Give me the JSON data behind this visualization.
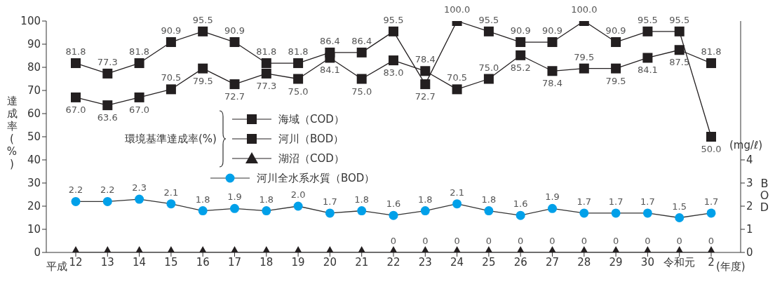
{
  "chart_data": {
    "type": "line",
    "ylabel": "達成率(%)",
    "y2label": "BOD",
    "legend_title": "環境基準達成率(%)",
    "annotations": [
      "平成",
      "(年度)",
      "(mg/ℓ)"
    ],
    "categories": [
      "12",
      "13",
      "14",
      "15",
      "16",
      "17",
      "18",
      "19",
      "20",
      "21",
      "22",
      "23",
      "24",
      "25",
      "26",
      "27",
      "28",
      "29",
      "30",
      "令和元",
      "2"
    ],
    "series": [
      {
        "name": "海域（COD）",
        "color": "#231f20",
        "marker": "square",
        "values": [
          81.8,
          77.3,
          81.8,
          90.9,
          95.5,
          90.9,
          81.8,
          81.8,
          86.4,
          86.4,
          95.5,
          72.7,
          100.0,
          95.5,
          90.9,
          90.9,
          100.0,
          90.9,
          95.5,
          95.5,
          50.0
        ],
        "value_labels": [
          "81.8",
          "77.3",
          "81.8",
          "90.9",
          "95.5",
          "90.9",
          "81.8",
          "81.8",
          "86.4",
          "86.4",
          "95.5",
          "72.7",
          "100.0",
          "95.5",
          "90.9",
          "90.9",
          "100.0",
          "90.9",
          "95.5",
          "95.5",
          "50.0"
        ]
      },
      {
        "name": "河川（BOD）",
        "color": "#231f20",
        "marker": "square",
        "values": [
          67.0,
          63.6,
          67.0,
          70.5,
          79.5,
          72.7,
          77.3,
          75.0,
          84.1,
          75.0,
          83.0,
          78.4,
          70.5,
          75.0,
          85.2,
          78.4,
          79.5,
          79.5,
          84.1,
          87.5,
          81.8
        ],
        "value_labels": [
          "67.0",
          "63.6",
          "67.0",
          "70.5",
          "79.5",
          "72.7",
          "77.3",
          "75.0",
          "84.1",
          "75.0",
          "83.0",
          "78.4",
          "70.5",
          "75.0",
          "85.2",
          "78.4",
          "79.5",
          "79.5",
          "84.1",
          "87.5",
          "81.8"
        ]
      },
      {
        "name": "湖沼（COD）",
        "color": "#231f20",
        "marker": "triangle",
        "values": [
          0,
          0,
          0,
          0,
          0,
          0,
          0,
          0,
          0,
          0,
          0,
          0,
          0,
          0,
          0,
          0,
          0,
          0,
          0,
          0,
          0
        ],
        "value_labels": [
          null,
          null,
          null,
          null,
          null,
          null,
          null,
          null,
          null,
          null,
          "0",
          "0",
          "0",
          "0",
          "0",
          "0",
          "0",
          "0",
          "0",
          "0",
          "0"
        ]
      },
      {
        "name": "河川全水系水質（BOD）",
        "color": "#00a0e9",
        "marker": "circle",
        "axis": "y2",
        "values": [
          2.2,
          2.2,
          2.3,
          2.1,
          1.8,
          1.9,
          1.8,
          2.0,
          1.7,
          1.8,
          1.6,
          1.8,
          2.1,
          1.8,
          1.6,
          1.9,
          1.7,
          1.7,
          1.7,
          1.5,
          1.7
        ],
        "value_labels": [
          "2.2",
          "2.2",
          "2.3",
          "2.1",
          "1.8",
          "1.9",
          "1.8",
          "2.0",
          "1.7",
          "1.8",
          "1.6",
          "1.8",
          "2.1",
          "1.8",
          "1.6",
          "1.9",
          "1.7",
          "1.7",
          "1.7",
          "1.5",
          "1.7"
        ]
      }
    ],
    "ylim": [
      0,
      100
    ],
    "yticks": [
      0,
      10,
      20,
      30,
      40,
      50,
      60,
      70,
      80,
      90,
      100
    ],
    "y2lim": [
      0,
      10
    ],
    "y2ticks": [
      0,
      1,
      2,
      3,
      4
    ],
    "grid": false,
    "legend": "center"
  }
}
